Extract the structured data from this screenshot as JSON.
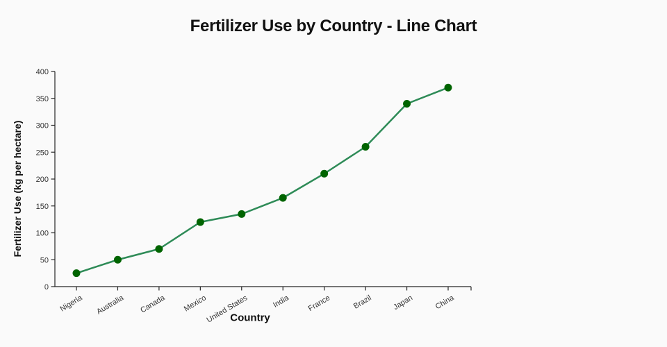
{
  "page": {
    "background": "#fafafa"
  },
  "chart_data": {
    "type": "line",
    "title": "Fertilizer Use by Country - Line Chart",
    "xlabel": "Country",
    "ylabel": "Fertilizer Use (kg per hectare)",
    "categories": [
      "Nigeria",
      "Australia",
      "Canada",
      "Mexico",
      "United States",
      "India",
      "France",
      "Brazil",
      "Japan",
      "China"
    ],
    "series": [
      {
        "name": "Fertilizer Use (kg per hectare)",
        "values": [
          25,
          50,
          70,
          120,
          135,
          165,
          210,
          260,
          340,
          370
        ]
      }
    ],
    "ylim": [
      0,
      400
    ],
    "yticks": [
      0,
      50,
      100,
      150,
      200,
      250,
      300,
      350,
      400
    ],
    "grid": false,
    "legend_position": "none",
    "marker_shape": "circle",
    "colors": {
      "line": "#2e8b57",
      "marker": "#006400",
      "axis": "#262626",
      "tick_label": "#333333",
      "title_text": "#111111"
    }
  }
}
